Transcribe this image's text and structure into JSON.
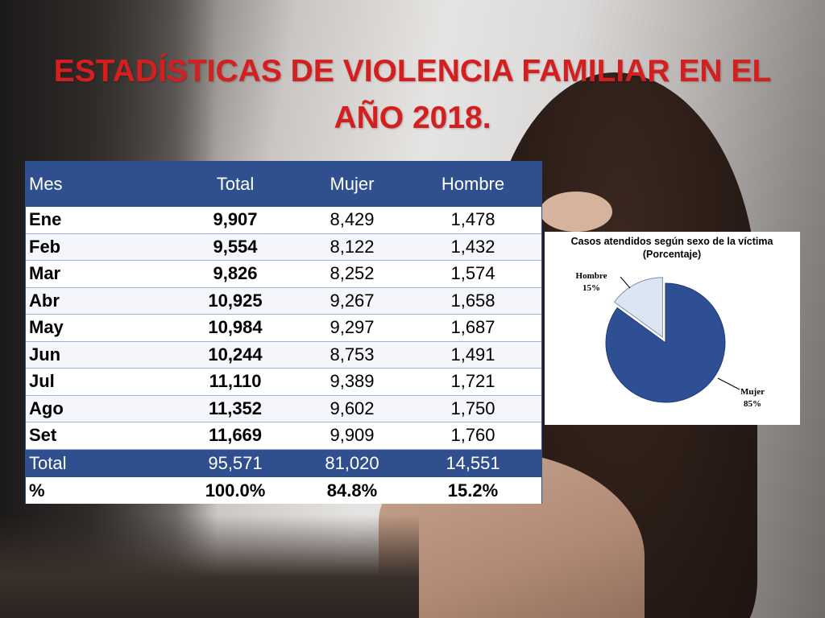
{
  "title": "ESTADÍSTICAS DE VIOLENCIA FAMILIAR EN EL AÑO 2018.",
  "colors": {
    "title": "#d31f1f",
    "table_header": "#2f4f8f",
    "pie_mujer": "#2e4f93",
    "pie_hombre": "#dce6f2"
  },
  "table": {
    "columns": [
      "Mes",
      "Total",
      "Mujer",
      "Hombre"
    ],
    "rows": [
      {
        "mes": "Ene",
        "total": "9,907",
        "mujer": "8,429",
        "hombre": "1,478"
      },
      {
        "mes": "Feb",
        "total": "9,554",
        "mujer": "8,122",
        "hombre": "1,432"
      },
      {
        "mes": "Mar",
        "total": "9,826",
        "mujer": "8,252",
        "hombre": "1,574"
      },
      {
        "mes": "Abr",
        "total": "10,925",
        "mujer": "9,267",
        "hombre": "1,658"
      },
      {
        "mes": "May",
        "total": "10,984",
        "mujer": "9,297",
        "hombre": "1,687"
      },
      {
        "mes": "Jun",
        "total": "10,244",
        "mujer": "8,753",
        "hombre": "1,491"
      },
      {
        "mes": "Jul",
        "total": "11,110",
        "mujer": "9,389",
        "hombre": "1,721"
      },
      {
        "mes": "Ago",
        "total": "11,352",
        "mujer": "9,602",
        "hombre": "1,750"
      },
      {
        "mes": "Set",
        "total": "11,669",
        "mujer": "9,909",
        "hombre": "1,760"
      }
    ],
    "total_row": {
      "mes": "Total",
      "total": "95,571",
      "mujer": "81,020",
      "hombre": "14,551"
    },
    "pct_row": {
      "mes": "%",
      "total": "100.0%",
      "mujer": "84.8%",
      "hombre": "15.2%"
    }
  },
  "chart_data": [
    {
      "type": "table",
      "columns": [
        "Mes",
        "Total",
        "Mujer",
        "Hombre"
      ],
      "rows": [
        [
          "Ene",
          9907,
          8429,
          1478
        ],
        [
          "Feb",
          9554,
          8122,
          1432
        ],
        [
          "Mar",
          9826,
          8252,
          1574
        ],
        [
          "Abr",
          10925,
          9267,
          1658
        ],
        [
          "May",
          10984,
          9297,
          1687
        ],
        [
          "Jun",
          10244,
          8753,
          1491
        ],
        [
          "Jul",
          11110,
          9389,
          1721
        ],
        [
          "Ago",
          11352,
          9602,
          1750
        ],
        [
          "Set",
          11669,
          9909,
          1760
        ],
        [
          "Total",
          95571,
          81020,
          14551
        ],
        [
          "%",
          "100.0%",
          "84.8%",
          "15.2%"
        ]
      ]
    },
    {
      "type": "pie",
      "title": "Casos atendidos según sexo de la víctima",
      "subtitle": "(Porcentaje)",
      "slices": [
        {
          "name": "Mujer",
          "value": 85,
          "label": "85%"
        },
        {
          "name": "Hombre",
          "value": 15,
          "label": "15%"
        }
      ]
    }
  ]
}
